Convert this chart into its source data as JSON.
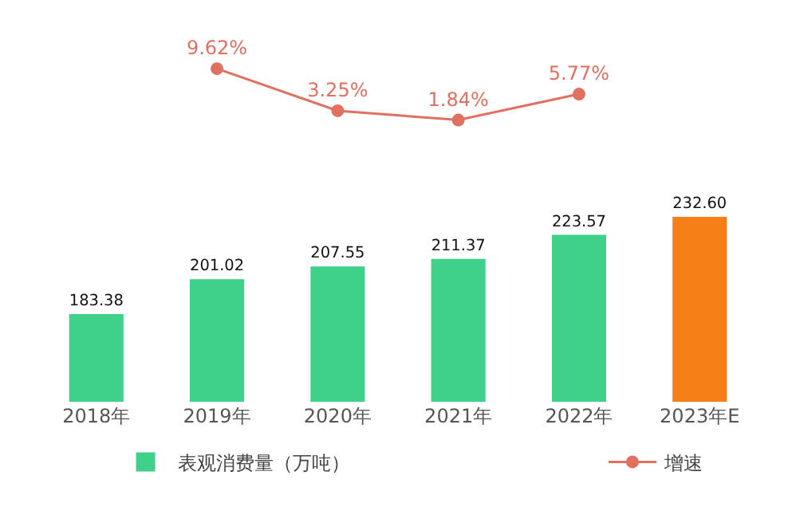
{
  "chart_data": [
    {
      "type": "line",
      "categories": [
        null,
        null,
        null,
        null,
        null,
        null
      ],
      "series": [
        {
          "name": "增速",
          "color": "#e07060",
          "marker": "circle",
          "values": [
            null,
            9.62,
            3.25,
            1.84,
            5.77,
            null
          ],
          "value_labels": [
            null,
            "9.62%",
            "3.25%",
            "1.84%",
            "5.77%",
            null
          ]
        }
      ],
      "legend": "bottom right",
      "grid": false
    },
    {
      "type": "bar",
      "categories": [
        "2018年",
        "2019年",
        "2020年",
        "2021年",
        "2022年",
        "2023年E"
      ],
      "series": [
        {
          "name": "表观消费量（万吨）",
          "type": "bar",
          "colors": [
            "#3fd18a",
            "#3fd18a",
            "#3fd18a",
            "#3fd18a",
            "#3fd18a",
            "#f57f17"
          ],
          "values": [
            183.38,
            201.02,
            207.55,
            211.37,
            223.57,
            232.6
          ],
          "value_labels": [
            "183.38",
            "201.02",
            "207.55",
            "211.37",
            "223.57",
            "232.60"
          ]
        }
      ],
      "legend": "bottom left",
      "grid": false
    }
  ]
}
